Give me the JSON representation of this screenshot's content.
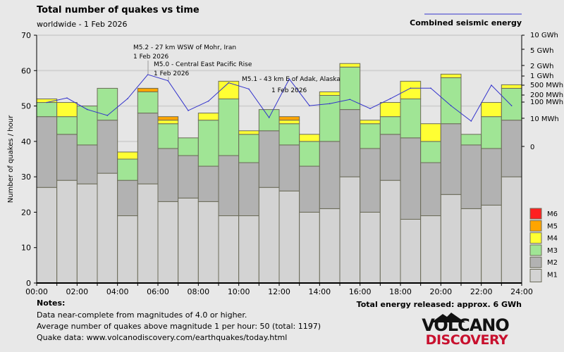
{
  "chart_data": {
    "type": "bar",
    "stacked": true,
    "title": "Total number of quakes vs time",
    "subtitle": "worldwide -  1 Feb 2026",
    "ylabel": "Number of quakes / hour",
    "ylim": [
      0,
      70
    ],
    "yticks": [
      0,
      10,
      20,
      30,
      40,
      50,
      60,
      70
    ],
    "xticks": [
      "00:00",
      "02:00",
      "04:00",
      "06:00",
      "08:00",
      "10:00",
      "12:00",
      "14:00",
      "16:00",
      "18:00",
      "20:00",
      "22:00",
      "24:00"
    ],
    "grid": true,
    "legend_position": "bottom-right",
    "categories": [
      "00",
      "01",
      "02",
      "03",
      "04",
      "05",
      "06",
      "07",
      "08",
      "09",
      "10",
      "11",
      "12",
      "13",
      "14",
      "15",
      "16",
      "17",
      "18",
      "19",
      "20",
      "21",
      "22",
      "23"
    ],
    "series": [
      {
        "name": "M1",
        "color": "#d3d3d3",
        "values": [
          27,
          29,
          28,
          31,
          19,
          28,
          23,
          24,
          23,
          19,
          19,
          27,
          26,
          20,
          21,
          30,
          20,
          29,
          18,
          19,
          25,
          21,
          22,
          30
        ]
      },
      {
        "name": "M2",
        "color": "#b2b2b2",
        "values": [
          20,
          13,
          11,
          15,
          10,
          20,
          15,
          12,
          10,
          17,
          15,
          16,
          13,
          13,
          19,
          19,
          18,
          13,
          23,
          15,
          20,
          18,
          16,
          16
        ]
      },
      {
        "name": "M3",
        "color": "#a0e595",
        "values": [
          4,
          5,
          11,
          9,
          6,
          6,
          7,
          5,
          13,
          16,
          8,
          6,
          6,
          7,
          13,
          12,
          7,
          5,
          11,
          6,
          13,
          3,
          9,
          9
        ]
      },
      {
        "name": "M4",
        "color": "#ffff33",
        "values": [
          1,
          4,
          0,
          0,
          2,
          0,
          1,
          0,
          2,
          5,
          1,
          0,
          1,
          2,
          1,
          1,
          1,
          4,
          5,
          5,
          1,
          0,
          4,
          1
        ]
      },
      {
        "name": "M5",
        "color": "#ffa500",
        "values": [
          0,
          0,
          0,
          0,
          0,
          1,
          1,
          0,
          0,
          0,
          0,
          0,
          1,
          0,
          0,
          0,
          0,
          0,
          0,
          0,
          0,
          0,
          0,
          0
        ]
      },
      {
        "name": "M6",
        "color": "#ff2020",
        "values": [
          0,
          0,
          0,
          0,
          0,
          0,
          0,
          0,
          0,
          0,
          0,
          0,
          0,
          0,
          0,
          0,
          0,
          0,
          0,
          0,
          0,
          0,
          0,
          0
        ]
      }
    ],
    "energy": {
      "name": "Combined seismic energy",
      "color": "#3333cc",
      "unit": "MWh",
      "values": [
        95,
        150,
        35,
        15,
        140,
        1100,
        700,
        30,
        110,
        600,
        350,
        11,
        800,
        60,
        80,
        130,
        40,
        140,
        380,
        380,
        60,
        9,
        500,
        60
      ],
      "axis_ticks": [
        "10 GWh",
        "5 GWh",
        "2 GWh",
        "1 GWh",
        "500 MWh",
        "200 MWh",
        "100 MWh",
        "10 MWh",
        "0"
      ]
    },
    "annotations": [
      {
        "line1": "M5.2 - 27 km WSW of Mohr, Iran",
        "line2": "1 Feb 2026"
      },
      {
        "line1": "M5.0 - Central East Pacific Rise",
        "line2": "1 Feb 2026"
      },
      {
        "line1": "M5.1 - 43 km E of Adak, Alaska",
        "line2": "1 Feb 2026"
      }
    ]
  },
  "footer": {
    "notes_title": "Notes:",
    "note1": "Data near-complete from magnitudes of 4.0 or higher.",
    "note2": "Average number of quakes above magnitude 1 per hour: 50 (total: 1197)",
    "note3": "Quake data: www.volcanodiscovery.com/earthquakes/today.html",
    "energy_total": "Total energy released: approx. 6 GWh",
    "logo_top": "VOLCANO",
    "logo_bottom": "DISCOVERY"
  }
}
